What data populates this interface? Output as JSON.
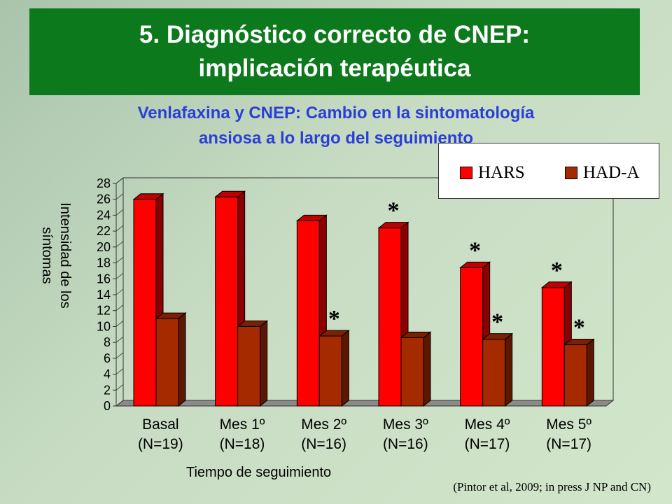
{
  "header": {
    "title_line1": "5. Diagnóstico correcto de CNEP:",
    "title_line2": "implicación terapéutica"
  },
  "subtitle_line1": "Venlafaxina y CNEP: Cambio en la sintomatología",
  "subtitle_line2": "ansiosa a lo largo del seguimiento",
  "source": "(Pintor et al, 2009; in press J NP and CN)",
  "colors": {
    "hars": "#ff0000",
    "hada": "#a52a00",
    "banner": "#0c7a1c",
    "subtitle": "#2b3fd6"
  },
  "chart_data": {
    "type": "bar",
    "ylabel_line1": "Intensidad de los",
    "ylabel_line2": "síntomas",
    "xlabel": "Tiempo de seguimiento",
    "ylim": [
      0,
      28
    ],
    "ytick_step": 2,
    "categories": [
      {
        "name": "Basal",
        "n": "(N=19)"
      },
      {
        "name": "Mes 1º",
        "n": "(N=18)"
      },
      {
        "name": "Mes 2º",
        "n": "(N=16)"
      },
      {
        "name": "Mes 3º",
        "n": "(N=16)"
      },
      {
        "name": "Mes 4º",
        "n": "(N=17)"
      },
      {
        "name": "Mes 5º",
        "n": "(N=17)"
      }
    ],
    "series": [
      {
        "name": "HARS",
        "values": [
          26,
          26.3,
          23.3,
          22.4,
          17.4,
          14.9
        ],
        "significant": [
          false,
          false,
          false,
          true,
          true,
          true
        ]
      },
      {
        "name": "HAD-A",
        "values": [
          11,
          10,
          8.8,
          8.6,
          8.4,
          7.7
        ],
        "significant": [
          false,
          false,
          true,
          false,
          true,
          true
        ]
      }
    ],
    "significance_marker": "*"
  }
}
